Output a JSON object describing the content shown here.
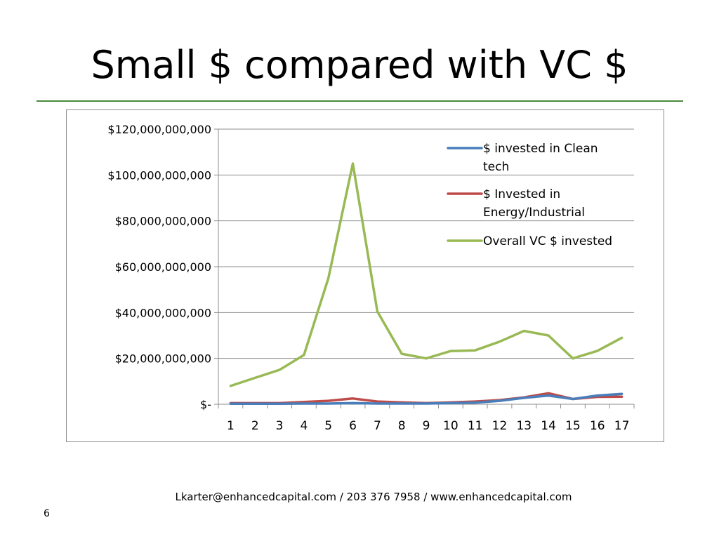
{
  "slide": {
    "title": "Small $ compared with VC $",
    "footer": "Lkarter@enhancedcapital.com  / 203 376 7958  / www.enhancedcapital.com",
    "page_number": "6",
    "rule_color": "#4a8a3b"
  },
  "chart_data": {
    "type": "line",
    "title": "",
    "xlabel": "",
    "ylabel": "",
    "categories": [
      "1",
      "2",
      "3",
      "4",
      "5",
      "6",
      "7",
      "8",
      "9",
      "10",
      "11",
      "12",
      "13",
      "14",
      "15",
      "16",
      "17"
    ],
    "y_tick_labels": [
      "$-",
      "$20,000,000,000",
      "$40,000,000,000",
      "$60,000,000,000",
      "$80,000,000,000",
      "$100,000,000,000",
      "$120,000,000,000"
    ],
    "y_tick_values": [
      0,
      20000000000,
      40000000000,
      60000000000,
      80000000000,
      100000000000,
      120000000000
    ],
    "ylim": [
      0,
      120000000000
    ],
    "grid": "horizontal",
    "legend_position": "top-right",
    "series": [
      {
        "name": "$ invested in Clean tech",
        "legend_lines": [
          "$ invested in Clean",
          "tech"
        ],
        "color": "#4a7ebb",
        "values": [
          200000000,
          200000000,
          200000000,
          300000000,
          300000000,
          500000000,
          300000000,
          300000000,
          300000000,
          500000000,
          700000000,
          1500000000,
          2800000000,
          3800000000,
          2300000000,
          3800000000,
          4500000000
        ]
      },
      {
        "name": "$ Invested in Energy/Industrial",
        "legend_lines": [
          "$ Invested in",
          "Energy/Industrial"
        ],
        "color": "#be4b48",
        "values": [
          500000000,
          500000000,
          500000000,
          1000000000,
          1500000000,
          2500000000,
          1200000000,
          800000000,
          500000000,
          800000000,
          1200000000,
          1800000000,
          3000000000,
          4800000000,
          2300000000,
          3200000000,
          3300000000
        ]
      },
      {
        "name": "Overall VC $ invested",
        "legend_lines": [
          "Overall VC $ invested"
        ],
        "color": "#98b954",
        "values": [
          8000000000,
          11500000000,
          15000000000,
          21500000000,
          55000000000,
          105000000000,
          40500000000,
          22000000000,
          20000000000,
          23200000000,
          23500000000,
          27300000000,
          32000000000,
          30000000000,
          20000000000,
          23300000000,
          29000000000
        ]
      }
    ]
  }
}
